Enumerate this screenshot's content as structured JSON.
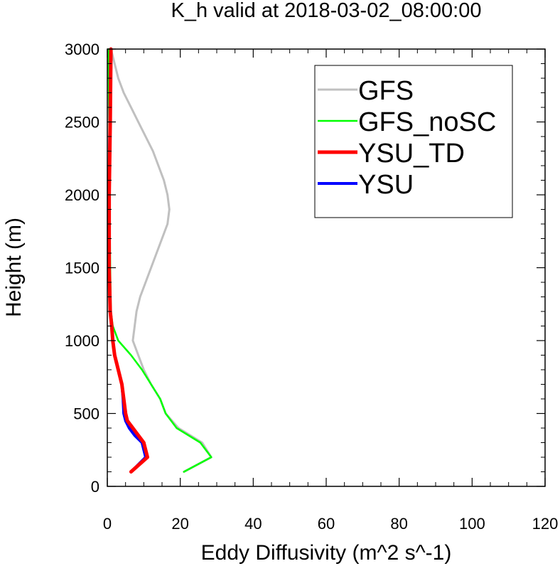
{
  "chart_data": {
    "type": "line",
    "title": "K_h valid at 2018-03-02_08:00:00",
    "xlabel": "Eddy Diffusivity (m^2 s^-1)",
    "ylabel": "Height (m)",
    "xlim": [
      0,
      120
    ],
    "ylim": [
      0,
      3000
    ],
    "xticks": [
      "0",
      "20",
      "40",
      "60",
      "80",
      "100",
      "120"
    ],
    "yticks": [
      "0",
      "500",
      "1000",
      "1500",
      "2000",
      "2500",
      "3000"
    ],
    "grid": false,
    "legend_position": "top-right",
    "series": [
      {
        "name": "GFS",
        "color": "#c0c0c0",
        "points": [
          [
            21,
            100
          ],
          [
            28.5,
            200
          ],
          [
            26,
            300
          ],
          [
            19.5,
            400
          ],
          [
            16,
            500
          ],
          [
            14.5,
            600
          ],
          [
            12,
            700
          ],
          [
            10,
            800
          ],
          [
            8.5,
            900
          ],
          [
            7,
            1000
          ],
          [
            7.5,
            1100
          ],
          [
            8,
            1200
          ],
          [
            9,
            1300
          ],
          [
            10.5,
            1400
          ],
          [
            12,
            1500
          ],
          [
            13.5,
            1600
          ],
          [
            15,
            1700
          ],
          [
            16.5,
            1800
          ],
          [
            17,
            1900
          ],
          [
            16.5,
            2000
          ],
          [
            15.5,
            2100
          ],
          [
            14,
            2200
          ],
          [
            12.5,
            2300
          ],
          [
            10.5,
            2400
          ],
          [
            8.5,
            2500
          ],
          [
            6.5,
            2600
          ],
          [
            4.5,
            2700
          ],
          [
            3,
            2800
          ],
          [
            2,
            2900
          ],
          [
            1,
            3000
          ]
        ]
      },
      {
        "name": "GFS_noSC",
        "color": "#00ff00",
        "points": [
          [
            21,
            100
          ],
          [
            28.5,
            200
          ],
          [
            25.5,
            300
          ],
          [
            19,
            400
          ],
          [
            16,
            500
          ],
          [
            14.5,
            600
          ],
          [
            12,
            700
          ],
          [
            9.5,
            800
          ],
          [
            6.5,
            900
          ],
          [
            3,
            1000
          ],
          [
            1.5,
            1100
          ],
          [
            1,
            1200
          ],
          [
            0.8,
            1500
          ],
          [
            0.6,
            2000
          ],
          [
            0.5,
            2500
          ],
          [
            0.3,
            3000
          ]
        ]
      },
      {
        "name": "YSU_TD",
        "color": "#ff0000",
        "points": [
          [
            6.5,
            100
          ],
          [
            11,
            200
          ],
          [
            10,
            300
          ],
          [
            8.5,
            350
          ],
          [
            7,
            400
          ],
          [
            5.5,
            450
          ],
          [
            5,
            500
          ],
          [
            4.5,
            600
          ],
          [
            4,
            700
          ],
          [
            3,
            800
          ],
          [
            2,
            900
          ],
          [
            1.5,
            1000
          ],
          [
            1.2,
            1100
          ],
          [
            0.8,
            1200
          ],
          [
            0.5,
            1500
          ],
          [
            0.5,
            2000
          ],
          [
            0.8,
            2500
          ],
          [
            1,
            3000
          ]
        ]
      },
      {
        "name": "YSU",
        "color": "#0000ff",
        "points": [
          [
            6.5,
            100
          ],
          [
            10.5,
            200
          ],
          [
            9.5,
            300
          ],
          [
            7.5,
            350
          ],
          [
            6,
            400
          ],
          [
            5,
            450
          ],
          [
            4.5,
            500
          ],
          [
            4.3,
            600
          ],
          [
            4,
            700
          ],
          [
            3,
            800
          ],
          [
            2,
            900
          ],
          [
            1.5,
            1000
          ],
          [
            1.2,
            1100
          ],
          [
            0.8,
            1200
          ],
          [
            0.5,
            1500
          ],
          [
            0.5,
            2000
          ],
          [
            0.7,
            2500
          ],
          [
            0.9,
            3000
          ]
        ]
      }
    ]
  }
}
